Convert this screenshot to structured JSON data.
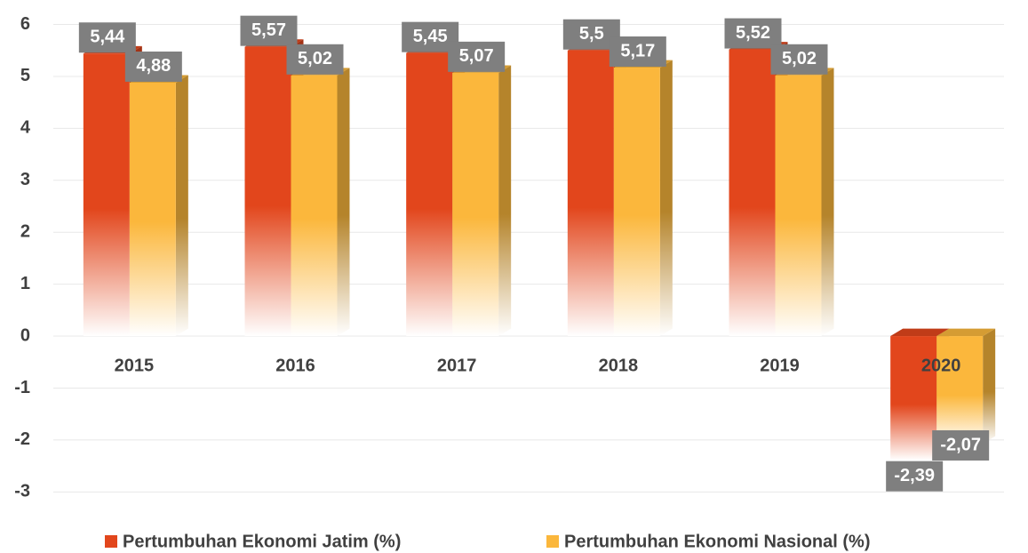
{
  "chart_data": {
    "type": "bar",
    "categories": [
      "2015",
      "2016",
      "2017",
      "2018",
      "2019",
      "2020"
    ],
    "series": [
      {
        "name": "Pertumbuhan Ekonomi Jatim (%)",
        "color": "#e2461c",
        "values": [
          5.44,
          5.57,
          5.45,
          5.5,
          5.52,
          -2.39
        ],
        "value_labels": [
          "5,44",
          "5,57",
          "5,45",
          "5,5",
          "5,52",
          "-2,39"
        ]
      },
      {
        "name": "Pertumbuhan Ekonomi Nasional (%)",
        "color": "#fbb73c",
        "values": [
          4.88,
          5.02,
          5.07,
          5.17,
          5.02,
          -2.07
        ],
        "value_labels": [
          "4,88",
          "5,02",
          "5,07",
          "5,17",
          "5,02",
          "-2,07"
        ]
      }
    ],
    "ylim": [
      -3.2,
      6.3
    ],
    "yticks": [
      -3,
      -2,
      -1,
      0,
      1,
      2,
      3,
      4,
      5,
      6
    ],
    "grid": true,
    "legend": "bottom"
  }
}
